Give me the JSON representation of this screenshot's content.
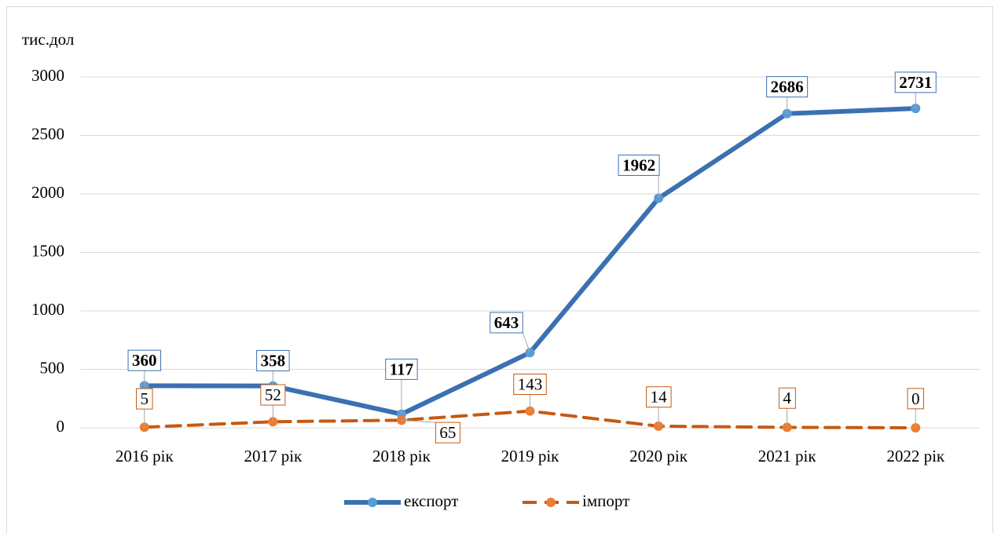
{
  "chart_data": {
    "type": "line",
    "y_axis_label": "тис.дол",
    "categories": [
      "2016 рік",
      "2017 рік",
      "2018 рік",
      "2019 рік",
      "2020 рік",
      "2021 рік",
      "2022 рік"
    ],
    "series": [
      {
        "name": "експорт",
        "color": "#3b70b2",
        "marker_color": "#5b9bd5",
        "dashed": false,
        "label_bold": true,
        "values": [
          360,
          358,
          117,
          643,
          1962,
          2686,
          2731
        ]
      },
      {
        "name": "імпорт",
        "color": "#c55a11",
        "marker_color": "#ed7d31",
        "dashed": true,
        "label_bold": false,
        "values": [
          5,
          52,
          65,
          143,
          14,
          4,
          0
        ]
      }
    ],
    "ylim": [
      0,
      3000
    ],
    "yticks": [
      0,
      500,
      1000,
      1500,
      2000,
      2500,
      3000
    ],
    "grid": true,
    "legend": "bottom"
  }
}
